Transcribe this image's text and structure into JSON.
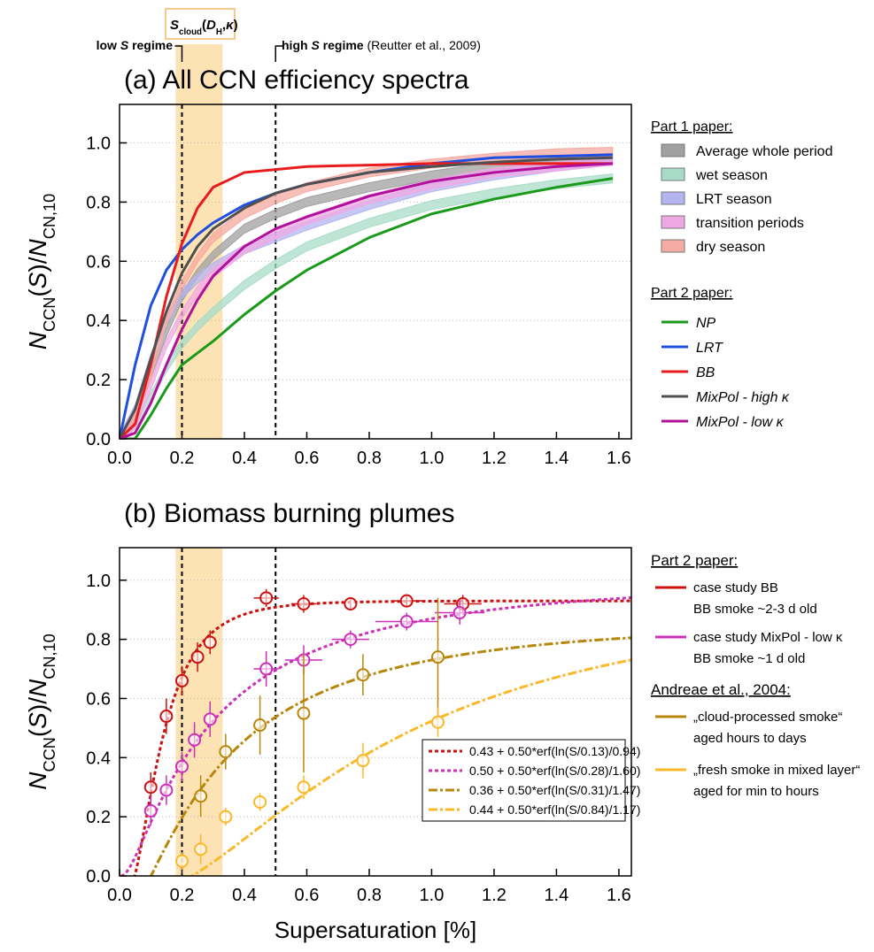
{
  "chart_data": [
    {
      "type": "line",
      "title": "(a) All CCN efficiency spectra",
      "ylabel": [
        {
          "text": "N",
          "style": "italic"
        },
        {
          "text": "CCN",
          "style": "sub"
        },
        {
          "text": "(",
          "style": "normal"
        },
        {
          "text": "S",
          "style": "italic"
        },
        {
          "text": ")/",
          "style": "normal"
        },
        {
          "text": "N",
          "style": "italic"
        },
        {
          "text": "CN,10",
          "style": "sub"
        }
      ],
      "annotations": {
        "scloud": [
          {
            "text": "S",
            "style": "bold-italic"
          },
          {
            "text": "cloud",
            "style": "bold-sub"
          },
          {
            "text": "(",
            "style": "bold"
          },
          {
            "text": "D",
            "style": "bold-italic"
          },
          {
            "text": "H",
            "style": "bold-sub"
          },
          {
            "text": ",",
            "style": "bold"
          },
          {
            "text": "κ",
            "style": "bold-italic"
          },
          {
            "text": ")",
            "style": "bold"
          }
        ],
        "low": [
          {
            "text": "low ",
            "style": "bold"
          },
          {
            "text": "S",
            "style": "bold-italic"
          },
          {
            "text": " regime",
            "style": "bold"
          }
        ],
        "high": [
          {
            "text": "high ",
            "style": "bold"
          },
          {
            "text": "S",
            "style": "bold-italic"
          },
          {
            "text": " regime",
            "style": "bold"
          },
          {
            "text": " (Reutter et al., 2009)",
            "style": "normal"
          }
        ]
      },
      "xlim": [
        0,
        1.64
      ],
      "ylim": [
        0,
        1.13
      ],
      "xticks": [
        {
          "value": 0,
          "label": "0.0"
        },
        0.2,
        0.4,
        0.6,
        0.8,
        {
          "value": 1,
          "label": "1.0"
        },
        1.2,
        1.4,
        1.6
      ],
      "yticks": [
        {
          "value": 0,
          "label": "0.0"
        },
        0.2,
        0.4,
        0.6,
        0.8,
        {
          "value": 1,
          "label": "1.0"
        }
      ],
      "grid": true,
      "shaded_x": [
        0.18,
        0.33
      ],
      "dashed_x": [
        0.2,
        0.5
      ],
      "legend_titles": [
        "Part 1 paper:",
        "Part 2 paper:"
      ],
      "x": [
        0,
        0.05,
        0.1,
        0.15,
        0.2,
        0.25,
        0.3,
        0.4,
        0.5,
        0.6,
        0.8,
        1.0,
        1.2,
        1.4,
        1.58
      ],
      "band_series": [
        {
          "name": "Average whole period",
          "color": "#a0a0a0",
          "band": 0.015,
          "values": [
            0,
            0.08,
            0.22,
            0.36,
            0.48,
            0.56,
            0.62,
            0.71,
            0.76,
            0.8,
            0.85,
            0.89,
            0.92,
            0.94,
            0.95
          ]
        },
        {
          "name": "wet season",
          "color": "#a8dcc8",
          "band": 0.015,
          "values": [
            0,
            0.05,
            0.14,
            0.24,
            0.32,
            0.38,
            0.43,
            0.52,
            0.59,
            0.65,
            0.73,
            0.79,
            0.83,
            0.86,
            0.88
          ]
        },
        {
          "name": "LRT season",
          "color": "#b4b4f0",
          "band": 0.015,
          "values": [
            0,
            0.1,
            0.27,
            0.4,
            0.49,
            0.54,
            0.58,
            0.64,
            0.68,
            0.72,
            0.79,
            0.85,
            0.89,
            0.92,
            0.94
          ]
        },
        {
          "name": "transition periods",
          "color": "#f0a8e4",
          "band": 0.015,
          "values": [
            0,
            0.05,
            0.18,
            0.32,
            0.42,
            0.5,
            0.56,
            0.64,
            0.69,
            0.74,
            0.81,
            0.86,
            0.9,
            0.92,
            0.94
          ]
        },
        {
          "name": "dry season",
          "color": "#f5aaa2",
          "band": 0.015,
          "values": [
            0,
            0.07,
            0.22,
            0.4,
            0.52,
            0.61,
            0.68,
            0.76,
            0.81,
            0.85,
            0.9,
            0.93,
            0.95,
            0.965,
            0.97
          ]
        }
      ],
      "series": [
        {
          "name": "NP",
          "color": "#1a9a1a",
          "values": [
            0,
            0,
            0.08,
            0.17,
            0.25,
            0.29,
            0.33,
            0.42,
            0.5,
            0.57,
            0.68,
            0.76,
            0.81,
            0.85,
            0.88
          ]
        },
        {
          "name": "LRT",
          "color": "#1f4fe0",
          "values": [
            0,
            0.25,
            0.45,
            0.57,
            0.64,
            0.69,
            0.73,
            0.79,
            0.83,
            0.86,
            0.9,
            0.93,
            0.95,
            0.955,
            0.96
          ]
        },
        {
          "name": "BB",
          "color": "#e81c1c",
          "values": [
            0,
            0.05,
            0.25,
            0.48,
            0.66,
            0.78,
            0.85,
            0.9,
            0.91,
            0.92,
            0.925,
            0.93,
            0.93,
            0.93,
            0.93
          ]
        },
        {
          "name": "MixPol -  high κ",
          "color": "#505050",
          "values": [
            0,
            0.1,
            0.27,
            0.43,
            0.56,
            0.65,
            0.71,
            0.78,
            0.83,
            0.86,
            0.9,
            0.92,
            0.935,
            0.945,
            0.95
          ]
        },
        {
          "name": "MixPol -  low κ",
          "color": "#b0109a",
          "values": [
            0,
            0.02,
            0.12,
            0.25,
            0.37,
            0.47,
            0.55,
            0.65,
            0.71,
            0.75,
            0.82,
            0.87,
            0.9,
            0.92,
            0.93
          ]
        }
      ]
    },
    {
      "type": "scatter",
      "title": "(b) Biomass burning plumes",
      "ylabel": [
        {
          "text": "N",
          "style": "italic"
        },
        {
          "text": "CCN",
          "style": "sub"
        },
        {
          "text": "(",
          "style": "normal"
        },
        {
          "text": "S",
          "style": "italic"
        },
        {
          "text": ")/",
          "style": "normal"
        },
        {
          "text": "N",
          "style": "italic"
        },
        {
          "text": "CN,10",
          "style": "sub"
        }
      ],
      "xlabel": "Supersaturation [%]",
      "xlim": [
        0,
        1.64
      ],
      "ylim": [
        0,
        1.11
      ],
      "xticks": [
        {
          "value": 0,
          "label": "0.0"
        },
        0.2,
        0.4,
        0.6,
        0.8,
        {
          "value": 1,
          "label": "1.0"
        },
        1.2,
        1.4,
        1.6
      ],
      "yticks": [
        {
          "value": 0,
          "label": "0.0"
        },
        0.2,
        0.4,
        0.6,
        0.8,
        {
          "value": 1,
          "label": "1.0"
        }
      ],
      "grid": true,
      "shaded_x": [
        0.18,
        0.33
      ],
      "dashed_x": [
        0.2,
        0.5
      ],
      "legend_titles": [
        "Part 2 paper:",
        "Andreae et al., 2004:"
      ],
      "series": [
        {
          "name": "case study BB",
          "note": "BB smoke ~2-3 d old",
          "color": "#cc1010",
          "x": [
            0.1,
            0.15,
            0.2,
            0.25,
            0.29,
            0.47,
            0.59,
            0.74,
            0.92,
            1.1
          ],
          "values": [
            0.3,
            0.54,
            0.66,
            0.74,
            0.79,
            0.94,
            0.92,
            0.92,
            0.93,
            0.92
          ],
          "yerr": [
            0.05,
            0.06,
            0.05,
            0.05,
            0.04,
            0.03,
            0.03,
            0.02,
            0.02,
            0.03
          ],
          "xerr": [
            0,
            0,
            0,
            0,
            0,
            0.04,
            0.04,
            0,
            0.05,
            0.06
          ],
          "fit": {
            "label": "0.43 + 0.50*erf(ln(S/0.13)/0.94)",
            "params": [
              0.43,
              0.5,
              0.13,
              0.94
            ],
            "dash": "dot"
          }
        },
        {
          "name": "case study MixPol -  low κ",
          "note": "BB smoke ~1 d old",
          "color": "#cc30b8",
          "x": [
            0.1,
            0.15,
            0.2,
            0.24,
            0.29,
            0.47,
            0.59,
            0.74,
            0.92,
            1.09
          ],
          "values": [
            0.22,
            0.29,
            0.37,
            0.46,
            0.53,
            0.7,
            0.73,
            0.8,
            0.86,
            0.89
          ],
          "yerr": [
            0.05,
            0.05,
            0.05,
            0.06,
            0.06,
            0.06,
            0.05,
            0.03,
            0.03,
            0.04
          ],
          "xerr": [
            0,
            0,
            0,
            0,
            0,
            0.04,
            0.06,
            0.06,
            0.1,
            0.08
          ],
          "fit": {
            "label": "0.50 + 0.50*erf(ln(S/0.28)/1.60)",
            "params": [
              0.5,
              0.5,
              0.28,
              1.6
            ],
            "dash": "dot"
          }
        },
        {
          "name": "„cloud-processed smoke“",
          "note": "aged hours to days",
          "color": "#b8860b",
          "x": [
            0.26,
            0.34,
            0.45,
            0.59,
            0.78,
            1.02
          ],
          "values": [
            0.27,
            0.42,
            0.51,
            0.55,
            0.68,
            0.74
          ],
          "yerr": [
            0.07,
            0.06,
            0.1,
            0.2,
            0.07,
            0.2
          ],
          "xerr": [
            0,
            0,
            0,
            0,
            0,
            0
          ],
          "fit": {
            "label": "0.36 + 0.50*erf(ln(S/0.31)/1.47)",
            "params": [
              0.36,
              0.5,
              0.31,
              1.47
            ],
            "dash": "dashdot"
          }
        },
        {
          "name": "„fresh smoke in mixed layer“",
          "note": "aged for min to hours",
          "color": "#fbb829",
          "x": [
            0.2,
            0.26,
            0.34,
            0.45,
            0.59,
            0.78,
            1.02
          ],
          "values": [
            0.05,
            0.09,
            0.2,
            0.25,
            0.3,
            0.39,
            0.52
          ],
          "yerr": [
            0.03,
            0.05,
            0.03,
            0.03,
            0.04,
            0.06,
            0.05
          ],
          "xerr": [
            0,
            0,
            0,
            0,
            0,
            0,
            0
          ],
          "fit": {
            "label": "0.44 + 0.50*erf(ln(S/0.84)/1.17)",
            "params": [
              0.44,
              0.5,
              0.84,
              1.17
            ],
            "dash": "dashdot"
          }
        }
      ]
    }
  ]
}
